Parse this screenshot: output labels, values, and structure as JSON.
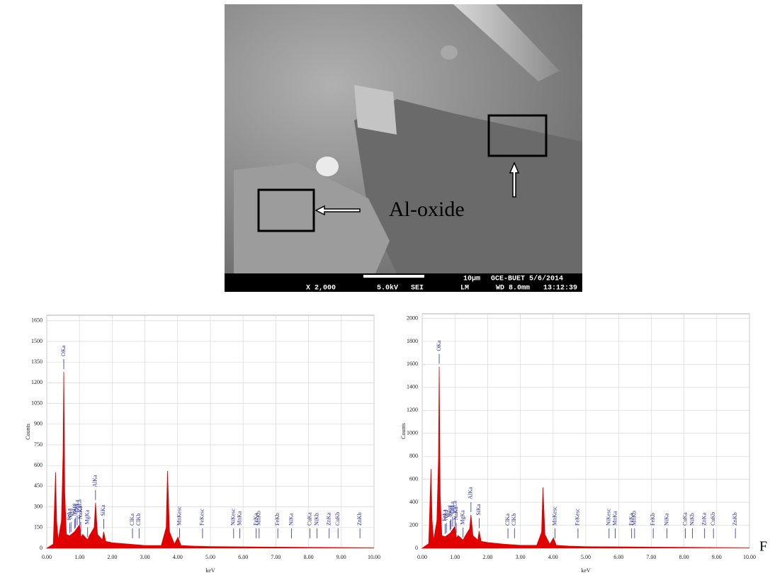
{
  "figure": {
    "image_label": "Al-oxide",
    "scale_text": "10µm",
    "lab_text": "GCE-BUET 5/6/2014",
    "magnification": "X 2,000",
    "voltage": "5.0kV",
    "detector": "SEI",
    "mode": "LM",
    "working_distance": "WD 8.0mm",
    "time": "13:12:39",
    "caption_fragment": "F"
  },
  "chart_data": [
    {
      "type": "area",
      "ylabel": "Counts",
      "xlabel": "keV",
      "x": [
        0,
        0.2,
        0.27,
        0.3,
        0.35,
        0.45,
        0.5,
        0.52,
        0.55,
        0.6,
        0.7,
        0.85,
        1.0,
        1.05,
        1.1,
        1.25,
        1.3,
        1.45,
        1.49,
        1.55,
        1.7,
        1.74,
        1.8,
        2.0,
        2.5,
        3.0,
        3.5,
        3.65,
        3.69,
        3.75,
        3.9,
        4.01,
        4.1,
        4.5,
        5,
        6,
        7,
        8,
        9,
        10
      ],
      "series": [
        {
          "color": "#e00000",
          "values": [
            0,
            30,
            550,
            200,
            60,
            200,
            700,
            1280,
            400,
            100,
            90,
            120,
            170,
            80,
            100,
            60,
            90,
            150,
            330,
            100,
            60,
            120,
            50,
            40,
            30,
            20,
            20,
            150,
            560,
            120,
            30,
            80,
            20,
            15,
            12,
            10,
            8,
            6,
            5,
            3
          ]
        }
      ],
      "xlim": [
        0,
        10
      ],
      "ylim": [
        0,
        1690
      ],
      "xticks": [
        {
          "value": 0,
          "label": "0.00"
        },
        {
          "value": 1,
          "label": "1.00"
        },
        {
          "value": 2,
          "label": "2.00"
        },
        {
          "value": 3,
          "label": "3.00"
        },
        {
          "value": 4,
          "label": "4.00"
        },
        {
          "value": 5,
          "label": "5.00"
        },
        {
          "value": 6,
          "label": "6.00"
        },
        {
          "value": 7,
          "label": "7.00"
        },
        {
          "value": 8,
          "label": "8.00"
        },
        {
          "value": 9,
          "label": "9.00"
        },
        {
          "value": 10,
          "label": "10.00"
        }
      ],
      "yticks": [
        0,
        150,
        300,
        450,
        600,
        750,
        900,
        1050,
        1200,
        1350,
        1500,
        1650
      ],
      "grid": true,
      "annotations": [
        {
          "label": "OKa",
          "x": 0.52
        },
        {
          "label": "FeLa",
          "x": 0.7
        },
        {
          "label": "NiLl",
          "x": 0.74
        },
        {
          "label": "NiLa",
          "x": 0.85
        },
        {
          "label": "ZnLl",
          "x": 0.88
        },
        {
          "label": "CuLa",
          "x": 0.93
        },
        {
          "label": "ZnLa",
          "x": 1.01
        },
        {
          "label": "NaKa",
          "x": 1.04
        },
        {
          "label": "MgKa",
          "x": 1.25
        },
        {
          "label": "AlKa",
          "x": 1.49
        },
        {
          "label": "SiKa",
          "x": 1.74
        },
        {
          "label": "ClKa",
          "x": 2.62
        },
        {
          "label": "ClKb",
          "x": 2.82
        },
        {
          "label": "MnKesc",
          "x": 4.06
        },
        {
          "label": "FeKesc",
          "x": 4.76
        },
        {
          "label": "NiKesc",
          "x": 5.71
        },
        {
          "label": "MnKa",
          "x": 5.9
        },
        {
          "label": "FeKa",
          "x": 6.4
        },
        {
          "label": "MnKb",
          "x": 6.49
        },
        {
          "label": "FeKb",
          "x": 7.06
        },
        {
          "label": "NiKa",
          "x": 7.48
        },
        {
          "label": "CuKa",
          "x": 8.04
        },
        {
          "label": "NiKb",
          "x": 8.26
        },
        {
          "label": "ZnKa",
          "x": 8.63
        },
        {
          "label": "CuKb",
          "x": 8.9
        },
        {
          "label": "ZnKb",
          "x": 9.57
        }
      ]
    },
    {
      "type": "area",
      "ylabel": "Counts",
      "xlabel": "keV",
      "x": [
        0,
        0.2,
        0.27,
        0.3,
        0.35,
        0.45,
        0.5,
        0.52,
        0.55,
        0.6,
        0.7,
        0.85,
        1.0,
        1.05,
        1.1,
        1.25,
        1.3,
        1.45,
        1.49,
        1.55,
        1.7,
        1.74,
        1.8,
        2.0,
        2.5,
        3.0,
        3.5,
        3.65,
        3.69,
        3.75,
        3.9,
        4.01,
        4.1,
        4.5,
        5,
        6,
        7,
        8,
        9,
        10
      ],
      "series": [
        {
          "color": "#e00000",
          "values": [
            0,
            40,
            690,
            250,
            70,
            240,
            800,
            1580,
            450,
            110,
            100,
            130,
            190,
            90,
            110,
            70,
            100,
            170,
            290,
            110,
            70,
            150,
            60,
            50,
            35,
            25,
            25,
            140,
            530,
            120,
            35,
            90,
            25,
            18,
            14,
            12,
            10,
            8,
            6,
            4
          ]
        }
      ],
      "xlim": [
        0,
        10
      ],
      "ylim": [
        0,
        2040
      ],
      "xticks": [
        {
          "value": 0,
          "label": "0.00"
        },
        {
          "value": 1,
          "label": "1.00"
        },
        {
          "value": 2,
          "label": "2.00"
        },
        {
          "value": 3,
          "label": "3.00"
        },
        {
          "value": 4,
          "label": "4.00"
        },
        {
          "value": 5,
          "label": "5.00"
        },
        {
          "value": 6,
          "label": "6.00"
        },
        {
          "value": 7,
          "label": "7.00"
        },
        {
          "value": 8,
          "label": "8.00"
        },
        {
          "value": 9,
          "label": "9.00"
        },
        {
          "value": 10,
          "label": "10.00"
        }
      ],
      "yticks": [
        0,
        200,
        400,
        600,
        800,
        1000,
        1200,
        1400,
        1600,
        1800,
        2000
      ],
      "grid": true,
      "annotations": [
        {
          "label": "OKa",
          "x": 0.52
        },
        {
          "label": "FeLa",
          "x": 0.7
        },
        {
          "label": "NiLl",
          "x": 0.74
        },
        {
          "label": "NiLa",
          "x": 0.85
        },
        {
          "label": "ZnLl",
          "x": 0.88
        },
        {
          "label": "CuLa",
          "x": 0.93
        },
        {
          "label": "ZnLa",
          "x": 1.01
        },
        {
          "label": "NaKa",
          "x": 1.04
        },
        {
          "label": "MgKa",
          "x": 1.25
        },
        {
          "label": "AlKa",
          "x": 1.49
        },
        {
          "label": "SiKa",
          "x": 1.74
        },
        {
          "label": "ClKa",
          "x": 2.62
        },
        {
          "label": "ClKb",
          "x": 2.82
        },
        {
          "label": "MnKesc",
          "x": 4.06
        },
        {
          "label": "FeKesc",
          "x": 4.76
        },
        {
          "label": "NiKesc",
          "x": 5.71
        },
        {
          "label": "MnKa",
          "x": 5.9
        },
        {
          "label": "FeKa",
          "x": 6.4
        },
        {
          "label": "MnKb",
          "x": 6.49
        },
        {
          "label": "FeKb",
          "x": 7.06
        },
        {
          "label": "NiKa",
          "x": 7.48
        },
        {
          "label": "CuKa",
          "x": 8.04
        },
        {
          "label": "NiKb",
          "x": 8.26
        },
        {
          "label": "ZnKa",
          "x": 8.63
        },
        {
          "label": "CuKb",
          "x": 8.9
        },
        {
          "label": "ZnKb",
          "x": 9.57
        }
      ]
    }
  ]
}
